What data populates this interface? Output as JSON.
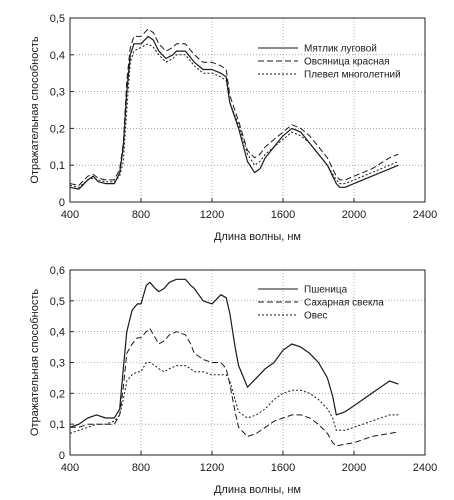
{
  "chart_data": [
    {
      "type": "line",
      "xlabel": "Длина волны, нм",
      "ylabel": "Отражательная способность",
      "xlim": [
        400,
        2400
      ],
      "ylim": [
        0,
        0.5
      ],
      "xticks": [
        400,
        800,
        1200,
        1600,
        2000,
        2400
      ],
      "xtick_labels": [
        "400",
        "800",
        "1200",
        "1600",
        "2000",
        "2400"
      ],
      "yticks": [
        0,
        0.1,
        0.2,
        0.3,
        0.4,
        0.5
      ],
      "ytick_labels": [
        "0",
        "0,1",
        "0,2",
        "0,3",
        "0,4",
        "0,5"
      ],
      "grid": "dotted",
      "legend": "top-right",
      "series": [
        {
          "name": "Мятлик луговой",
          "style": "solid",
          "x": [
            400,
            450,
            500,
            530,
            560,
            600,
            650,
            680,
            700,
            720,
            740,
            760,
            800,
            840,
            870,
            900,
            940,
            980,
            1000,
            1050,
            1100,
            1150,
            1200,
            1250,
            1280,
            1300,
            1350,
            1400,
            1440,
            1470,
            1500,
            1550,
            1600,
            1650,
            1700,
            1750,
            1800,
            1850,
            1900,
            1920,
            1950,
            2000,
            2100,
            2200,
            2250
          ],
          "y": [
            0.04,
            0.035,
            0.06,
            0.07,
            0.055,
            0.05,
            0.05,
            0.08,
            0.15,
            0.3,
            0.4,
            0.43,
            0.43,
            0.45,
            0.44,
            0.41,
            0.39,
            0.4,
            0.41,
            0.41,
            0.38,
            0.36,
            0.36,
            0.35,
            0.34,
            0.27,
            0.2,
            0.11,
            0.08,
            0.09,
            0.12,
            0.15,
            0.18,
            0.2,
            0.19,
            0.16,
            0.13,
            0.1,
            0.05,
            0.04,
            0.04,
            0.05,
            0.07,
            0.09,
            0.1
          ]
        },
        {
          "name": "Овсяница красная",
          "style": "dashed",
          "x": [
            400,
            450,
            500,
            530,
            560,
            600,
            650,
            680,
            700,
            720,
            740,
            760,
            800,
            840,
            870,
            900,
            940,
            980,
            1000,
            1050,
            1100,
            1150,
            1200,
            1250,
            1280,
            1300,
            1350,
            1400,
            1440,
            1470,
            1500,
            1550,
            1600,
            1650,
            1700,
            1750,
            1800,
            1850,
            1900,
            1920,
            1950,
            2000,
            2100,
            2200,
            2250
          ],
          "y": [
            0.05,
            0.045,
            0.07,
            0.075,
            0.065,
            0.06,
            0.06,
            0.09,
            0.16,
            0.33,
            0.42,
            0.45,
            0.45,
            0.47,
            0.46,
            0.43,
            0.41,
            0.42,
            0.43,
            0.43,
            0.4,
            0.38,
            0.38,
            0.37,
            0.36,
            0.29,
            0.22,
            0.14,
            0.12,
            0.13,
            0.15,
            0.17,
            0.19,
            0.21,
            0.2,
            0.18,
            0.15,
            0.12,
            0.07,
            0.06,
            0.06,
            0.07,
            0.09,
            0.12,
            0.13
          ]
        },
        {
          "name": "Плевел многолетний",
          "style": "dotted",
          "x": [
            400,
            450,
            500,
            530,
            560,
            600,
            650,
            680,
            700,
            720,
            740,
            760,
            800,
            840,
            870,
            900,
            940,
            980,
            1000,
            1050,
            1100,
            1150,
            1200,
            1250,
            1280,
            1300,
            1350,
            1400,
            1440,
            1470,
            1500,
            1550,
            1600,
            1650,
            1700,
            1750,
            1800,
            1850,
            1900,
            1920,
            1950,
            2000,
            2100,
            2200,
            2250
          ],
          "y": [
            0.045,
            0.04,
            0.06,
            0.065,
            0.06,
            0.055,
            0.055,
            0.07,
            0.11,
            0.25,
            0.38,
            0.41,
            0.42,
            0.43,
            0.42,
            0.4,
            0.38,
            0.39,
            0.4,
            0.4,
            0.37,
            0.35,
            0.35,
            0.34,
            0.33,
            0.27,
            0.21,
            0.13,
            0.1,
            0.11,
            0.13,
            0.15,
            0.17,
            0.19,
            0.18,
            0.16,
            0.13,
            0.1,
            0.06,
            0.05,
            0.05,
            0.06,
            0.08,
            0.1,
            0.11
          ]
        }
      ]
    },
    {
      "type": "line",
      "xlabel": "Длина волны, нм",
      "ylabel": "Отражательная способность",
      "xlim": [
        400,
        2400
      ],
      "ylim": [
        0,
        0.6
      ],
      "xticks": [
        400,
        800,
        1200,
        1600,
        2000,
        2400
      ],
      "xtick_labels": [
        "400",
        "800",
        "1200",
        "1600",
        "2000",
        "2400"
      ],
      "yticks": [
        0,
        0.1,
        0.2,
        0.3,
        0.4,
        0.5,
        0.6
      ],
      "ytick_labels": [
        "0",
        "0,1",
        "0,2",
        "0,3",
        "0,4",
        "0,5",
        "0,6"
      ],
      "grid": "dotted",
      "legend": "top-right",
      "series": [
        {
          "name": "Пшеница",
          "style": "solid",
          "x": [
            400,
            450,
            500,
            550,
            600,
            650,
            680,
            700,
            720,
            750,
            780,
            800,
            830,
            850,
            880,
            900,
            930,
            960,
            1000,
            1050,
            1080,
            1100,
            1150,
            1200,
            1250,
            1280,
            1300,
            1330,
            1350,
            1400,
            1450,
            1500,
            1550,
            1600,
            1650,
            1700,
            1750,
            1800,
            1850,
            1880,
            1900,
            1950,
            2000,
            2050,
            2100,
            2150,
            2200,
            2250
          ],
          "y": [
            0.09,
            0.1,
            0.12,
            0.13,
            0.12,
            0.12,
            0.15,
            0.28,
            0.4,
            0.47,
            0.49,
            0.49,
            0.55,
            0.56,
            0.54,
            0.53,
            0.54,
            0.56,
            0.57,
            0.57,
            0.55,
            0.54,
            0.5,
            0.49,
            0.52,
            0.51,
            0.46,
            0.35,
            0.29,
            0.22,
            0.25,
            0.28,
            0.3,
            0.34,
            0.36,
            0.35,
            0.33,
            0.3,
            0.25,
            0.19,
            0.13,
            0.14,
            0.16,
            0.18,
            0.2,
            0.22,
            0.24,
            0.23
          ]
        },
        {
          "name": "Сахарная свекла",
          "style": "dashed",
          "x": [
            400,
            450,
            500,
            550,
            600,
            650,
            680,
            700,
            720,
            750,
            780,
            800,
            830,
            850,
            880,
            900,
            930,
            960,
            1000,
            1050,
            1080,
            1100,
            1150,
            1200,
            1250,
            1280,
            1300,
            1330,
            1350,
            1400,
            1450,
            1500,
            1550,
            1600,
            1650,
            1700,
            1750,
            1800,
            1850,
            1880,
            1900,
            1950,
            2000,
            2050,
            2100,
            2150,
            2200,
            2250
          ],
          "y": [
            0.09,
            0.09,
            0.1,
            0.1,
            0.1,
            0.1,
            0.13,
            0.22,
            0.33,
            0.36,
            0.38,
            0.38,
            0.4,
            0.41,
            0.38,
            0.36,
            0.37,
            0.39,
            0.4,
            0.39,
            0.36,
            0.33,
            0.31,
            0.3,
            0.3,
            0.28,
            0.23,
            0.14,
            0.09,
            0.06,
            0.07,
            0.09,
            0.11,
            0.12,
            0.13,
            0.13,
            0.12,
            0.1,
            0.07,
            0.04,
            0.03,
            0.035,
            0.04,
            0.05,
            0.06,
            0.065,
            0.07,
            0.075
          ]
        },
        {
          "name": "Овес",
          "style": "dotted",
          "x": [
            400,
            450,
            500,
            550,
            600,
            650,
            680,
            700,
            720,
            750,
            780,
            800,
            830,
            850,
            880,
            900,
            930,
            960,
            1000,
            1050,
            1080,
            1100,
            1150,
            1200,
            1250,
            1280,
            1300,
            1330,
            1350,
            1400,
            1450,
            1500,
            1550,
            1600,
            1650,
            1700,
            1750,
            1800,
            1850,
            1880,
            1900,
            1950,
            2000,
            2050,
            2100,
            2150,
            2200,
            2250
          ],
          "y": [
            0.07,
            0.08,
            0.09,
            0.1,
            0.1,
            0.11,
            0.13,
            0.18,
            0.24,
            0.26,
            0.27,
            0.27,
            0.3,
            0.3,
            0.29,
            0.28,
            0.27,
            0.28,
            0.29,
            0.29,
            0.28,
            0.27,
            0.27,
            0.26,
            0.26,
            0.26,
            0.24,
            0.18,
            0.14,
            0.12,
            0.13,
            0.15,
            0.18,
            0.2,
            0.21,
            0.21,
            0.2,
            0.18,
            0.15,
            0.12,
            0.08,
            0.08,
            0.09,
            0.1,
            0.11,
            0.12,
            0.13,
            0.13
          ]
        }
      ]
    }
  ]
}
